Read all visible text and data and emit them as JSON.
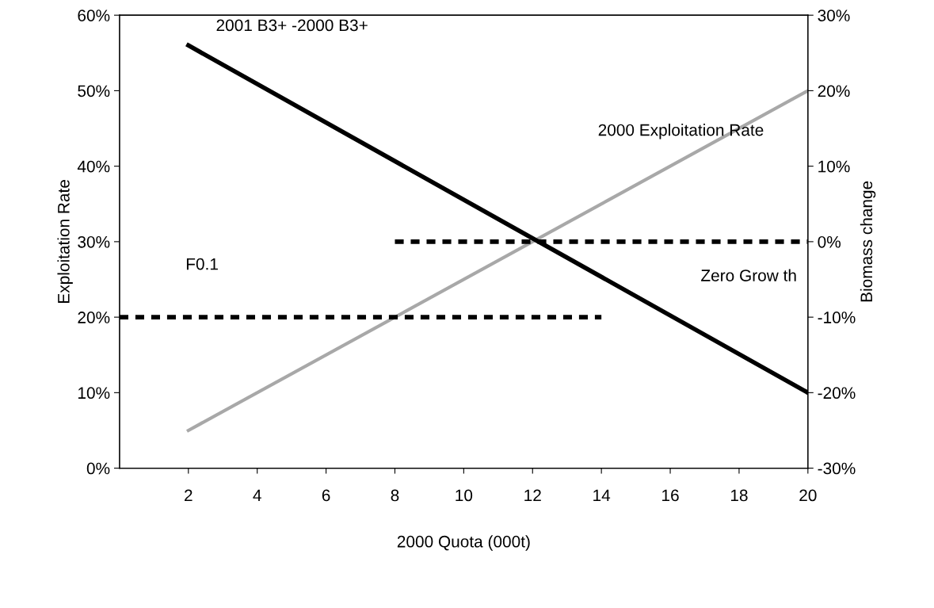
{
  "chart_data": {
    "type": "line",
    "xlabel": "2000 Quota (000t)",
    "ylabel": "Exploitation Rate",
    "y2label": "Biomass change",
    "xlim": [
      0,
      20
    ],
    "xticks": [
      2,
      4,
      6,
      8,
      10,
      12,
      14,
      16,
      18,
      20
    ],
    "ylim": [
      0,
      60
    ],
    "yticks": [
      {
        "value": 0,
        "label": "0%"
      },
      {
        "value": 10,
        "label": "10%"
      },
      {
        "value": 20,
        "label": "20%"
      },
      {
        "value": 30,
        "label": "30%"
      },
      {
        "value": 40,
        "label": "40%"
      },
      {
        "value": 50,
        "label": "50%"
      },
      {
        "value": 60,
        "label": "60%"
      }
    ],
    "y2lim": [
      -30,
      30
    ],
    "y2ticks": [
      {
        "value": -30,
        "label": "-30%"
      },
      {
        "value": -20,
        "label": "-20%"
      },
      {
        "value": -10,
        "label": "-10%"
      },
      {
        "value": 0,
        "label": "0%"
      },
      {
        "value": 10,
        "label": "10%"
      },
      {
        "value": 20,
        "label": "20%"
      },
      {
        "value": 30,
        "label": "30%"
      }
    ],
    "grid": false,
    "legend": false,
    "series": [
      {
        "name": "2001 B3+ -2000 B3+",
        "color": "#000000",
        "axis": "y2",
        "line_style": "solid",
        "x": [
          2,
          20
        ],
        "values": [
          26,
          -20
        ]
      },
      {
        "name": "2000 Exploitation Rate",
        "color": "#a8a8a8",
        "axis": "y",
        "line_style": "solid",
        "x": [
          2,
          20
        ],
        "values": [
          5,
          50
        ]
      },
      {
        "name": "F0.1",
        "color": "#000000",
        "axis": "y",
        "line_style": "dashed",
        "x": [
          0,
          14
        ],
        "values": [
          20,
          20
        ]
      },
      {
        "name": "Zero Grow th",
        "color": "#000000",
        "axis": "y2",
        "line_style": "dashed",
        "x": [
          8,
          20
        ],
        "values": [
          0,
          0
        ]
      }
    ]
  }
}
